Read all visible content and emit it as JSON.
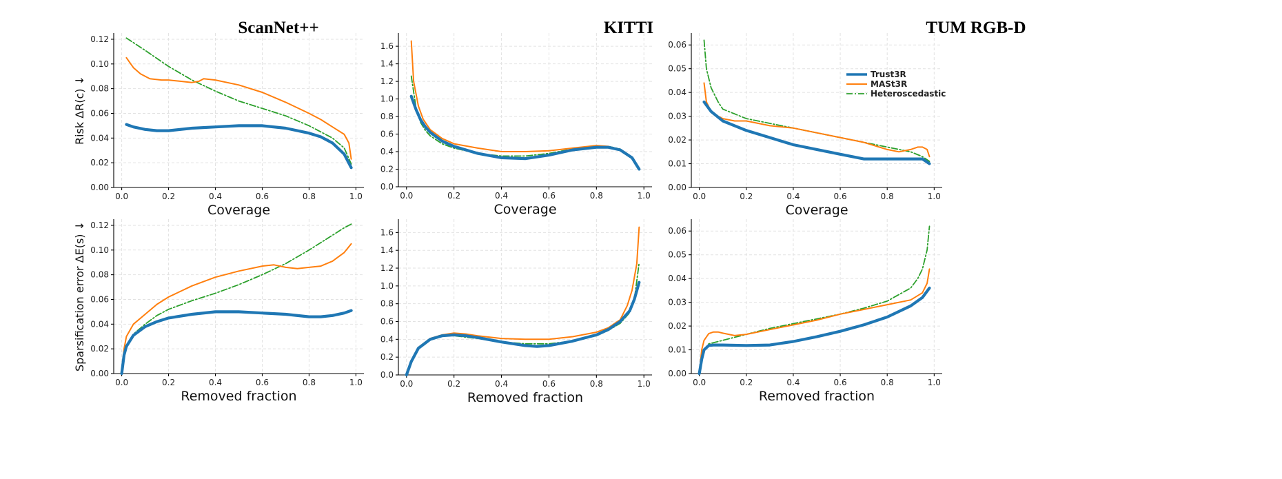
{
  "column_titles": [
    "ScanNet++",
    "KITTI",
    "TUM RGB-D"
  ],
  "row_ylabels": [
    "Risk ΔR(c) ↓",
    "Sparsification error ΔE(s) ↓"
  ],
  "legend": {
    "placement": "top-right of TUM RGB-D risk panel",
    "entries": [
      {
        "name": "Trust3R",
        "color": "#1f77b4",
        "style": "solid-thick"
      },
      {
        "name": "MASt3R",
        "color": "#ff7f0e",
        "style": "solid"
      },
      {
        "name": "Heteroscedastic",
        "color": "#2ca02c",
        "style": "dash-dot"
      }
    ]
  },
  "chart_data": [
    {
      "type": "line",
      "panel": "risk-scannet",
      "title": "ScanNet++",
      "xlabel": "Coverage",
      "ylabel": "Risk ΔR(c) ↓",
      "xlim": [
        0,
        1
      ],
      "ylim": [
        0,
        0.125
      ],
      "xticks": [
        "0.0",
        "0.2",
        "0.4",
        "0.6",
        "0.8",
        "1.0"
      ],
      "yticks": [
        "0.00",
        "0.02",
        "0.04",
        "0.06",
        "0.08",
        "0.10",
        "0.12"
      ],
      "grid": true,
      "series": [
        {
          "name": "Trust3R",
          "x": [
            0.02,
            0.05,
            0.1,
            0.15,
            0.2,
            0.3,
            0.4,
            0.5,
            0.6,
            0.7,
            0.8,
            0.85,
            0.9,
            0.95,
            0.98
          ],
          "y": [
            0.051,
            0.049,
            0.047,
            0.046,
            0.046,
            0.048,
            0.049,
            0.05,
            0.05,
            0.048,
            0.044,
            0.041,
            0.036,
            0.027,
            0.016
          ]
        },
        {
          "name": "MASt3R",
          "x": [
            0.02,
            0.05,
            0.08,
            0.12,
            0.17,
            0.2,
            0.25,
            0.3,
            0.33,
            0.35,
            0.4,
            0.5,
            0.6,
            0.7,
            0.8,
            0.85,
            0.9,
            0.95,
            0.97,
            0.98
          ],
          "y": [
            0.105,
            0.097,
            0.092,
            0.088,
            0.087,
            0.087,
            0.086,
            0.085,
            0.086,
            0.088,
            0.087,
            0.083,
            0.077,
            0.069,
            0.06,
            0.055,
            0.049,
            0.043,
            0.036,
            0.023
          ]
        },
        {
          "name": "Heteroscedastic",
          "x": [
            0.02,
            0.1,
            0.2,
            0.3,
            0.4,
            0.5,
            0.6,
            0.7,
            0.8,
            0.9,
            0.95,
            0.98
          ],
          "y": [
            0.121,
            0.111,
            0.098,
            0.087,
            0.078,
            0.07,
            0.064,
            0.058,
            0.05,
            0.04,
            0.032,
            0.019
          ]
        }
      ]
    },
    {
      "type": "line",
      "panel": "risk-kitti",
      "title": "KITTI",
      "xlabel": "Coverage",
      "ylabel": "",
      "xlim": [
        0,
        1
      ],
      "ylim": [
        0,
        1.75
      ],
      "xticks": [
        "0.0",
        "0.2",
        "0.4",
        "0.6",
        "0.8",
        "1.0"
      ],
      "yticks": [
        "0.0",
        "0.2",
        "0.4",
        "0.6",
        "0.8",
        "1.0",
        "1.2",
        "1.4",
        "1.6"
      ],
      "grid": true,
      "series": [
        {
          "name": "Trust3R",
          "x": [
            0.02,
            0.04,
            0.06,
            0.08,
            0.1,
            0.15,
            0.2,
            0.3,
            0.4,
            0.5,
            0.6,
            0.7,
            0.8,
            0.85,
            0.9,
            0.95,
            0.98
          ],
          "y": [
            1.03,
            0.88,
            0.76,
            0.68,
            0.62,
            0.52,
            0.46,
            0.38,
            0.33,
            0.32,
            0.36,
            0.42,
            0.45,
            0.45,
            0.42,
            0.33,
            0.2
          ]
        },
        {
          "name": "MASt3R",
          "x": [
            0.02,
            0.03,
            0.05,
            0.07,
            0.1,
            0.15,
            0.2,
            0.3,
            0.4,
            0.5,
            0.6,
            0.7,
            0.8,
            0.85,
            0.9,
            0.95,
            0.98
          ],
          "y": [
            1.66,
            1.2,
            0.92,
            0.77,
            0.65,
            0.55,
            0.49,
            0.44,
            0.4,
            0.4,
            0.41,
            0.44,
            0.47,
            0.46,
            0.42,
            0.32,
            0.2
          ]
        },
        {
          "name": "Heteroscedastic",
          "x": [
            0.02,
            0.04,
            0.06,
            0.08,
            0.1,
            0.15,
            0.2,
            0.3,
            0.4,
            0.5,
            0.6,
            0.7,
            0.8,
            0.85,
            0.9,
            0.95,
            0.98
          ],
          "y": [
            1.26,
            0.9,
            0.73,
            0.64,
            0.58,
            0.49,
            0.44,
            0.38,
            0.35,
            0.35,
            0.38,
            0.43,
            0.46,
            0.46,
            0.43,
            0.33,
            0.2
          ]
        }
      ]
    },
    {
      "type": "line",
      "panel": "risk-tum",
      "title": "TUM RGB-D",
      "xlabel": "Coverage",
      "ylabel": "",
      "xlim": [
        0,
        1
      ],
      "ylim": [
        0,
        0.065
      ],
      "xticks": [
        "0.0",
        "0.2",
        "0.4",
        "0.6",
        "0.8",
        "1.0"
      ],
      "yticks": [
        "0.00",
        "0.01",
        "0.02",
        "0.03",
        "0.04",
        "0.05",
        "0.06"
      ],
      "grid": true,
      "series": [
        {
          "name": "Trust3R",
          "x": [
            0.02,
            0.05,
            0.1,
            0.15,
            0.2,
            0.3,
            0.4,
            0.5,
            0.6,
            0.7,
            0.8,
            0.85,
            0.9,
            0.95,
            0.98
          ],
          "y": [
            0.036,
            0.032,
            0.028,
            0.026,
            0.024,
            0.021,
            0.018,
            0.016,
            0.014,
            0.012,
            0.012,
            0.012,
            0.012,
            0.012,
            0.01
          ]
        },
        {
          "name": "MASt3R",
          "x": [
            0.02,
            0.03,
            0.05,
            0.08,
            0.1,
            0.15,
            0.2,
            0.3,
            0.4,
            0.5,
            0.6,
            0.7,
            0.8,
            0.85,
            0.9,
            0.93,
            0.95,
            0.97,
            0.98
          ],
          "y": [
            0.044,
            0.036,
            0.032,
            0.03,
            0.029,
            0.028,
            0.028,
            0.026,
            0.025,
            0.023,
            0.021,
            0.019,
            0.016,
            0.015,
            0.016,
            0.017,
            0.017,
            0.016,
            0.013
          ]
        },
        {
          "name": "Heteroscedastic",
          "x": [
            0.02,
            0.03,
            0.05,
            0.08,
            0.1,
            0.15,
            0.2,
            0.3,
            0.4,
            0.5,
            0.6,
            0.7,
            0.8,
            0.9,
            0.95,
            0.98
          ],
          "y": [
            0.062,
            0.05,
            0.042,
            0.036,
            0.033,
            0.031,
            0.029,
            0.027,
            0.025,
            0.023,
            0.021,
            0.019,
            0.017,
            0.015,
            0.013,
            0.011
          ]
        }
      ]
    },
    {
      "type": "line",
      "panel": "sparsification-scannet",
      "title": "",
      "xlabel": "Removed fraction",
      "ylabel": "Sparsification error ΔE(s) ↓",
      "xlim": [
        0,
        1
      ],
      "ylim": [
        0,
        0.125
      ],
      "xticks": [
        "0.0",
        "0.2",
        "0.4",
        "0.6",
        "0.8",
        "1.0"
      ],
      "yticks": [
        "0.00",
        "0.02",
        "0.04",
        "0.06",
        "0.08",
        "0.10",
        "0.12"
      ],
      "grid": true,
      "series": [
        {
          "name": "Trust3R",
          "x": [
            0,
            0.01,
            0.02,
            0.05,
            0.1,
            0.15,
            0.2,
            0.3,
            0.4,
            0.5,
            0.6,
            0.7,
            0.8,
            0.85,
            0.9,
            0.95,
            0.98
          ],
          "y": [
            0,
            0.015,
            0.022,
            0.031,
            0.038,
            0.042,
            0.045,
            0.048,
            0.05,
            0.05,
            0.049,
            0.048,
            0.046,
            0.046,
            0.047,
            0.049,
            0.051
          ]
        },
        {
          "name": "MASt3R",
          "x": [
            0,
            0.01,
            0.02,
            0.05,
            0.1,
            0.15,
            0.2,
            0.3,
            0.4,
            0.5,
            0.6,
            0.65,
            0.7,
            0.75,
            0.8,
            0.85,
            0.9,
            0.95,
            0.98
          ],
          "y": [
            0,
            0.02,
            0.03,
            0.04,
            0.048,
            0.056,
            0.062,
            0.071,
            0.078,
            0.083,
            0.087,
            0.088,
            0.086,
            0.085,
            0.086,
            0.087,
            0.091,
            0.098,
            0.105
          ]
        },
        {
          "name": "Heteroscedastic",
          "x": [
            0,
            0.01,
            0.02,
            0.05,
            0.1,
            0.15,
            0.2,
            0.3,
            0.4,
            0.5,
            0.6,
            0.7,
            0.8,
            0.9,
            0.95,
            0.98
          ],
          "y": [
            0,
            0.015,
            0.022,
            0.032,
            0.04,
            0.047,
            0.052,
            0.059,
            0.065,
            0.072,
            0.08,
            0.089,
            0.1,
            0.112,
            0.118,
            0.121
          ]
        }
      ]
    },
    {
      "type": "line",
      "panel": "sparsification-kitti",
      "title": "",
      "xlabel": "Removed fraction",
      "ylabel": "",
      "xlim": [
        0,
        1
      ],
      "ylim": [
        0,
        1.75
      ],
      "xticks": [
        "0.0",
        "0.2",
        "0.4",
        "0.6",
        "0.8",
        "1.0"
      ],
      "yticks": [
        "0.0",
        "0.2",
        "0.4",
        "0.6",
        "0.8",
        "1.0",
        "1.2",
        "1.4",
        "1.6"
      ],
      "grid": true,
      "series": [
        {
          "name": "Trust3R",
          "x": [
            0,
            0.02,
            0.05,
            0.1,
            0.15,
            0.2,
            0.25,
            0.3,
            0.4,
            0.5,
            0.55,
            0.6,
            0.7,
            0.8,
            0.85,
            0.9,
            0.94,
            0.96,
            0.98
          ],
          "y": [
            0,
            0.15,
            0.3,
            0.4,
            0.44,
            0.45,
            0.44,
            0.42,
            0.37,
            0.33,
            0.32,
            0.33,
            0.38,
            0.45,
            0.51,
            0.6,
            0.72,
            0.85,
            1.04
          ]
        },
        {
          "name": "MASt3R",
          "x": [
            0,
            0.02,
            0.05,
            0.1,
            0.15,
            0.2,
            0.25,
            0.3,
            0.4,
            0.5,
            0.6,
            0.7,
            0.8,
            0.85,
            0.9,
            0.93,
            0.95,
            0.97,
            0.98
          ],
          "y": [
            0,
            0.16,
            0.31,
            0.41,
            0.45,
            0.47,
            0.46,
            0.44,
            0.41,
            0.4,
            0.4,
            0.43,
            0.48,
            0.53,
            0.62,
            0.78,
            0.95,
            1.25,
            1.66
          ]
        },
        {
          "name": "Heteroscedastic",
          "x": [
            0,
            0.02,
            0.05,
            0.1,
            0.15,
            0.2,
            0.3,
            0.4,
            0.5,
            0.6,
            0.7,
            0.8,
            0.85,
            0.9,
            0.94,
            0.96,
            0.98
          ],
          "y": [
            0,
            0.15,
            0.3,
            0.4,
            0.44,
            0.44,
            0.41,
            0.37,
            0.35,
            0.35,
            0.38,
            0.44,
            0.5,
            0.58,
            0.7,
            0.85,
            1.26
          ]
        }
      ]
    },
    {
      "type": "line",
      "panel": "sparsification-tum",
      "title": "",
      "xlabel": "Removed fraction",
      "ylabel": "",
      "xlim": [
        0,
        1
      ],
      "ylim": [
        0,
        0.065
      ],
      "xticks": [
        "0.0",
        "0.2",
        "0.4",
        "0.6",
        "0.8",
        "1.0"
      ],
      "yticks": [
        "0.00",
        "0.01",
        "0.02",
        "0.03",
        "0.04",
        "0.05",
        "0.06"
      ],
      "grid": true,
      "series": [
        {
          "name": "Trust3R",
          "x": [
            0,
            0.01,
            0.02,
            0.04,
            0.06,
            0.1,
            0.2,
            0.3,
            0.4,
            0.5,
            0.6,
            0.7,
            0.8,
            0.9,
            0.95,
            0.98
          ],
          "y": [
            0,
            0.006,
            0.01,
            0.0118,
            0.012,
            0.012,
            0.0118,
            0.012,
            0.0135,
            0.0155,
            0.0178,
            0.0205,
            0.0238,
            0.0285,
            0.032,
            0.036
          ]
        },
        {
          "name": "MASt3R",
          "x": [
            0,
            0.01,
            0.02,
            0.04,
            0.06,
            0.08,
            0.1,
            0.15,
            0.2,
            0.3,
            0.4,
            0.5,
            0.6,
            0.7,
            0.8,
            0.9,
            0.95,
            0.97,
            0.98
          ],
          "y": [
            0,
            0.01,
            0.014,
            0.0168,
            0.0175,
            0.0175,
            0.017,
            0.016,
            0.0165,
            0.0185,
            0.0205,
            0.0225,
            0.025,
            0.027,
            0.029,
            0.031,
            0.034,
            0.038,
            0.044
          ]
        },
        {
          "name": "Heteroscedastic",
          "x": [
            0,
            0.01,
            0.02,
            0.04,
            0.06,
            0.1,
            0.2,
            0.3,
            0.4,
            0.5,
            0.6,
            0.7,
            0.8,
            0.9,
            0.93,
            0.95,
            0.97,
            0.98
          ],
          "y": [
            0,
            0.007,
            0.01,
            0.0125,
            0.013,
            0.014,
            0.0165,
            0.019,
            0.021,
            0.023,
            0.025,
            0.0275,
            0.0305,
            0.036,
            0.04,
            0.044,
            0.052,
            0.062
          ]
        }
      ]
    }
  ]
}
